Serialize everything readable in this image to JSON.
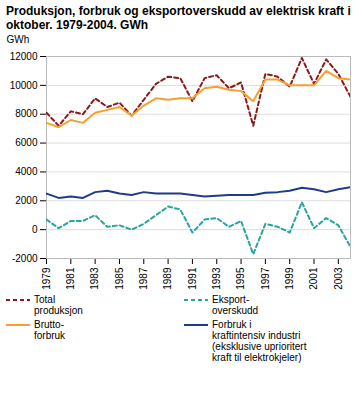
{
  "chart_data": {
    "type": "line",
    "title": "Produksjon, forbruk og eksportoverskudd av elektrisk kraft i oktober. 1979-2004. GWh",
    "y_label": "GWh",
    "x": [
      1979,
      1980,
      1981,
      1982,
      1983,
      1984,
      1985,
      1986,
      1987,
      1988,
      1989,
      1990,
      1991,
      1992,
      1993,
      1994,
      1995,
      1996,
      1997,
      1998,
      1999,
      2000,
      2001,
      2002,
      2003,
      2004
    ],
    "series": [
      {
        "name": "Total\nproduksjon",
        "color": "#8b1a1a",
        "line_style": "dashed",
        "values": [
          8100,
          7200,
          8200,
          8000,
          9100,
          8500,
          8800,
          7900,
          9000,
          10100,
          10600,
          10500,
          8900,
          10500,
          10700,
          9800,
          10200,
          7200,
          10800,
          10600,
          9900,
          11900,
          10100,
          11800,
          10800,
          9200
        ]
      },
      {
        "name": "Eksport-\noverskudd",
        "color": "#2aa3a3",
        "line_style": "dashed",
        "values": [
          700,
          100,
          600,
          600,
          1000,
          200,
          300,
          0,
          400,
          1000,
          1600,
          1400,
          -200,
          700,
          800,
          200,
          600,
          -1700,
          400,
          200,
          -200,
          1900,
          100,
          800,
          300,
          -1200
        ]
      },
      {
        "name": "Brutto-\nforbruk",
        "color": "#f5a030",
        "line_style": "solid",
        "values": [
          7400,
          7100,
          7600,
          7400,
          8100,
          8300,
          8500,
          7900,
          8600,
          9100,
          9000,
          9100,
          9100,
          9800,
          9900,
          9700,
          9600,
          8900,
          10400,
          10400,
          10000,
          10000,
          10000,
          11000,
          10500,
          10400
        ]
      },
      {
        "name": "Forbruk i\nkraftintensiv industri\n(eksklusive uprioritert\nkraft til elektrokjeler)",
        "color": "#1f3c88",
        "line_style": "solid",
        "values": [
          2500,
          2200,
          2300,
          2200,
          2600,
          2700,
          2500,
          2400,
          2600,
          2500,
          2500,
          2500,
          2400,
          2300,
          2350,
          2400,
          2400,
          2400,
          2550,
          2600,
          2700,
          2900,
          2800,
          2600,
          2800,
          2950
        ]
      }
    ],
    "xlim": [
      1979,
      2004
    ],
    "xticks": [
      1979,
      1981,
      1983,
      1985,
      1987,
      1989,
      1991,
      1993,
      1995,
      1997,
      1999,
      2001,
      2003
    ],
    "ylim": [
      -2000,
      12000
    ],
    "yticks": [
      -2000,
      0,
      2000,
      4000,
      6000,
      8000,
      10000,
      12000
    ],
    "grid": true,
    "legend": "bottom"
  }
}
